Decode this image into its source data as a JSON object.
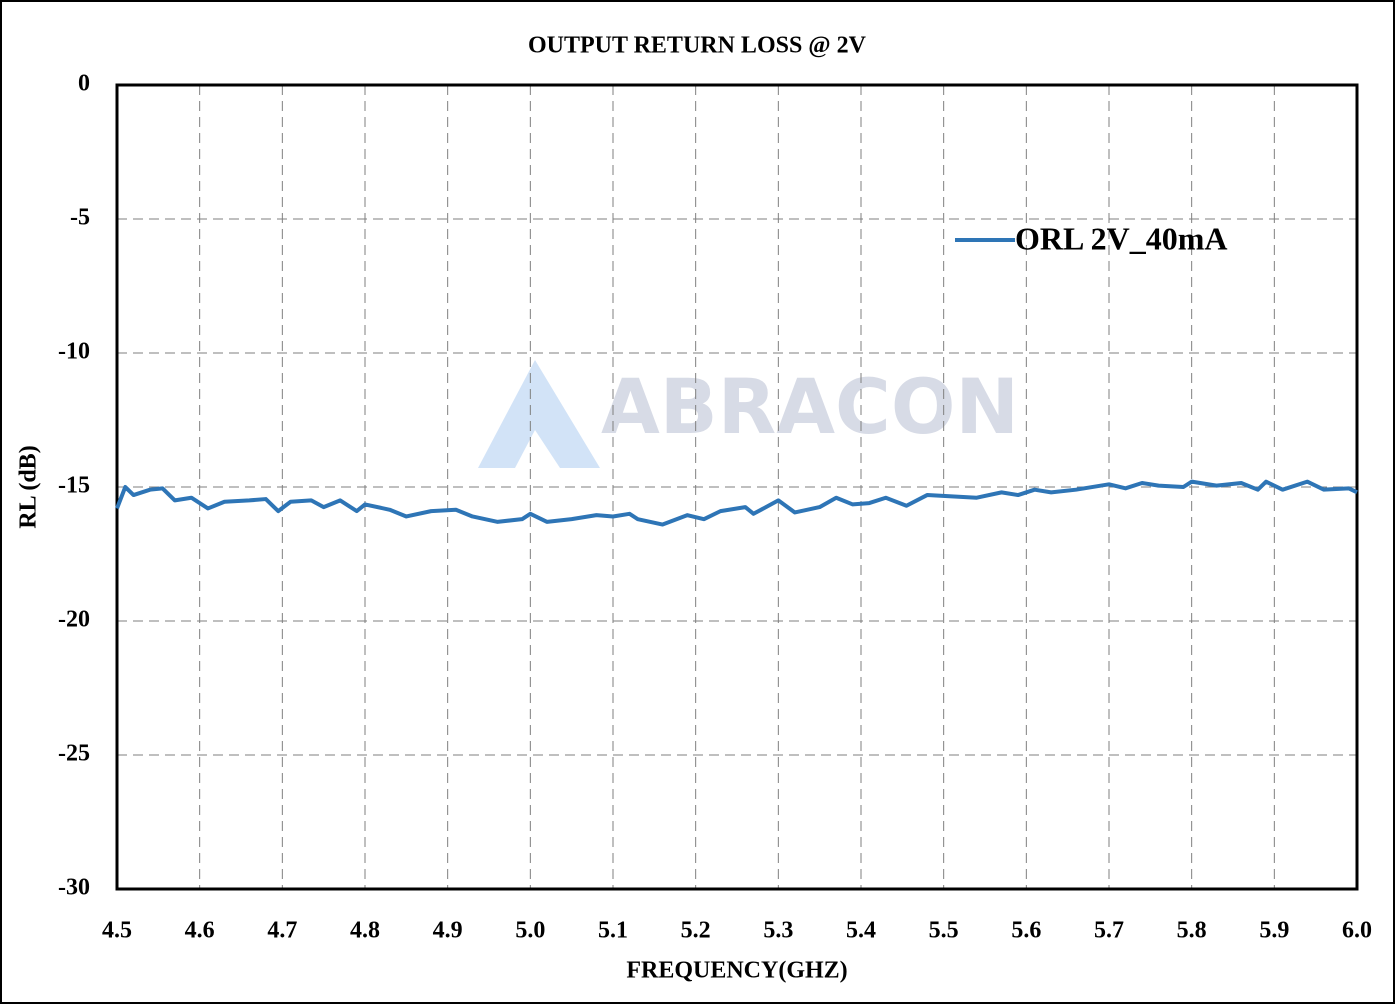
{
  "chart_data": {
    "type": "line",
    "title": "OUTPUT RETURN LOSS @ 2V",
    "xlabel": "FREQUENCY(GHZ)",
    "ylabel": "RL (dB)",
    "watermark": "ABRACON",
    "xlim": [
      4.5,
      6.0
    ],
    "xticks": [
      4.5,
      4.6,
      4.7,
      4.8,
      4.9,
      {
        "value": 5,
        "label": "5.0"
      },
      5.1,
      5.2,
      5.3,
      5.4,
      5.5,
      5.6,
      5.7,
      5.8,
      5.9,
      {
        "value": 6,
        "label": "6.0"
      }
    ],
    "ylim": [
      -30,
      0
    ],
    "yticks": [
      -30,
      -25,
      -20,
      -15,
      -10,
      -5,
      0
    ],
    "grid": true,
    "legend": "upper right",
    "x": [
      4.5,
      4.51,
      4.52,
      4.54,
      4.555,
      4.57,
      4.59,
      4.61,
      4.63,
      4.66,
      4.68,
      4.695,
      4.71,
      4.735,
      4.75,
      4.77,
      4.79,
      4.8,
      4.83,
      4.85,
      4.88,
      4.91,
      4.93,
      4.96,
      4.99,
      5.0,
      5.02,
      5.05,
      5.08,
      5.1,
      5.12,
      5.13,
      5.16,
      5.19,
      5.21,
      5.23,
      5.26,
      5.27,
      5.3,
      5.32,
      5.35,
      5.37,
      5.39,
      5.41,
      5.43,
      5.455,
      5.48,
      5.51,
      5.54,
      5.57,
      5.59,
      5.61,
      5.63,
      5.66,
      5.7,
      5.72,
      5.74,
      5.76,
      5.79,
      5.8,
      5.83,
      5.86,
      5.88,
      5.89,
      5.91,
      5.94,
      5.96,
      5.99,
      6.0
    ],
    "series": [
      {
        "name": "ORL 2V_40mA",
        "color": "#2e75b6",
        "values": [
          -15.8,
          -15.0,
          -15.3,
          -15.1,
          -15.05,
          -15.5,
          -15.4,
          -15.8,
          -15.55,
          -15.5,
          -15.45,
          -15.9,
          -15.55,
          -15.5,
          -15.75,
          -15.5,
          -15.9,
          -15.65,
          -15.85,
          -16.1,
          -15.9,
          -15.85,
          -16.1,
          -16.3,
          -16.2,
          -16.0,
          -16.3,
          -16.2,
          -16.05,
          -16.1,
          -16.0,
          -16.2,
          -16.4,
          -16.05,
          -16.2,
          -15.9,
          -15.75,
          -16.0,
          -15.5,
          -15.95,
          -15.75,
          -15.4,
          -15.65,
          -15.6,
          -15.4,
          -15.7,
          -15.3,
          -15.35,
          -15.4,
          -15.2,
          -15.3,
          -15.1,
          -15.2,
          -15.1,
          -14.9,
          -15.05,
          -14.85,
          -14.95,
          -15.0,
          -14.8,
          -14.95,
          -14.85,
          -15.1,
          -14.8,
          -15.1,
          -14.8,
          -15.1,
          -15.05,
          -15.2
        ]
      }
    ]
  }
}
